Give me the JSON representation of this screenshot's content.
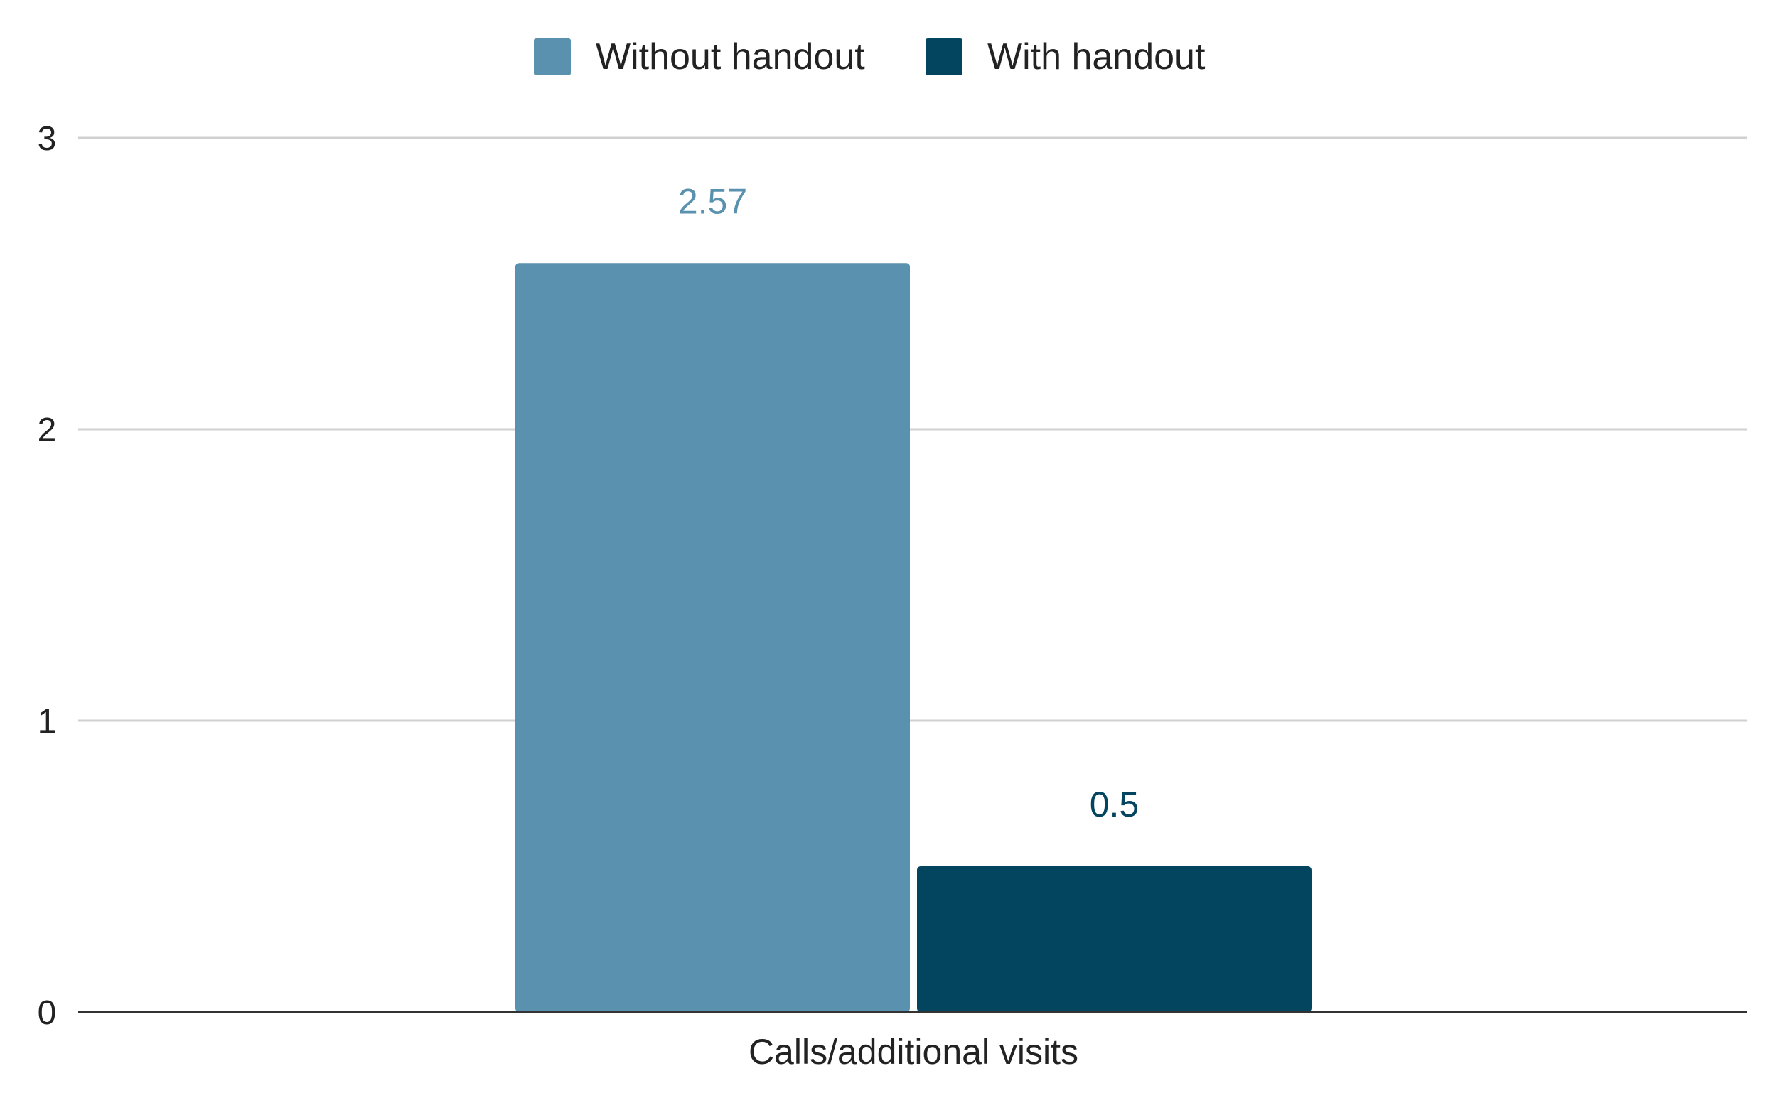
{
  "chart_data": {
    "type": "bar",
    "categories": [
      "Calls/additional visits"
    ],
    "series": [
      {
        "name": "Without handout",
        "values": [
          2.57
        ],
        "color": "#5a91ae"
      },
      {
        "name": "With handout",
        "values": [
          0.5
        ],
        "color": "#03445f"
      }
    ],
    "data_labels": [
      "2.57",
      "0.5"
    ],
    "ylim": [
      0,
      3
    ],
    "yticks": [
      0,
      1,
      2,
      3
    ],
    "grid": true,
    "legend": "top-center",
    "title": "",
    "xlabel": "",
    "ylabel": ""
  }
}
